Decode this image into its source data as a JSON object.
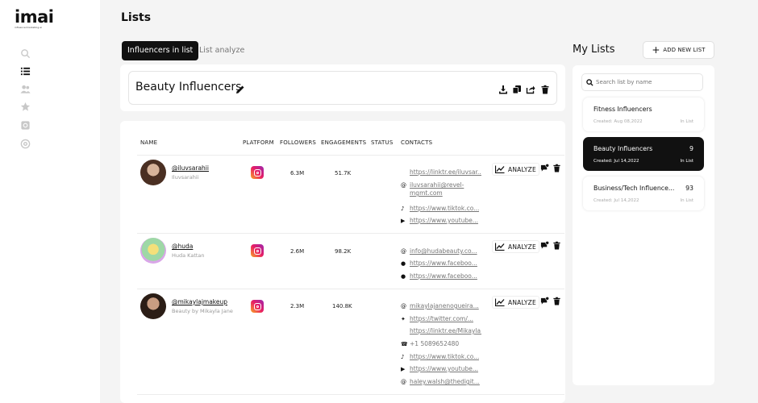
{
  "brand": {
    "name": "imai",
    "tagline": "influencermarketing.ai"
  },
  "page": {
    "title": "Lists"
  },
  "tabs": [
    {
      "label": "Influencers in list",
      "active": true
    },
    {
      "label": "List analyze",
      "active": false
    }
  ],
  "sidebar": {
    "icons": [
      "search-icon",
      "list-icon",
      "users-icon",
      "star-icon",
      "instagram-icon",
      "support-icon"
    ]
  },
  "current_list": {
    "name": "Beauty Influencers"
  },
  "table": {
    "headers": [
      "NAME",
      "PLATFORM",
      "FOLLOWERS",
      "ENGAGEMENTS",
      "STATUS",
      "CONTACTS"
    ],
    "analyze_label": "ANALYZE",
    "rows": [
      {
        "handle": "@iluvsarahii",
        "name": "Iluvsarahii",
        "platform": "instagram",
        "followers": "6.3M",
        "engagements": "51.7K",
        "status": "",
        "contacts": [
          {
            "icon": "",
            "text": "https://linktr.ee/iluvsar..."
          },
          {
            "icon": "at",
            "text": "iluvsarahii@revel-mgmt.com"
          },
          {
            "icon": "tiktok",
            "text": "https://www.tiktok.co..."
          },
          {
            "icon": "youtube",
            "text": "https://www.youtube..."
          }
        ]
      },
      {
        "handle": "@huda",
        "name": "Huda Kattan",
        "platform": "instagram",
        "followers": "2.6M",
        "engagements": "98.2K",
        "status": "",
        "contacts": [
          {
            "icon": "at",
            "text": "info@hudabeauty.co..."
          },
          {
            "icon": "facebook",
            "text": "https://www.faceboo..."
          },
          {
            "icon": "facebook",
            "text": "https://www.faceboo..."
          }
        ]
      },
      {
        "handle": "@mikaylajmakeup",
        "name": "Beauty by Mikayla Jane",
        "platform": "instagram",
        "followers": "2.3M",
        "engagements": "140.8K",
        "status": "",
        "contacts": [
          {
            "icon": "at",
            "text": "mikaylajanenogueira..."
          },
          {
            "icon": "twitter",
            "text": "https://twitter.com/..."
          },
          {
            "icon": "",
            "text": "https://linktr.ee/Mikayla..."
          },
          {
            "icon": "phone",
            "text": "+1 5089652480"
          },
          {
            "icon": "tiktok",
            "text": "https://www.tiktok.co..."
          },
          {
            "icon": "youtube",
            "text": "https://www.youtube..."
          },
          {
            "icon": "at",
            "text": "haley.walsh@thedigit..."
          }
        ]
      }
    ]
  },
  "my_lists": {
    "title": "My Lists",
    "add_button": "ADD NEW LIST",
    "search_placeholder": "Search list by name",
    "in_list_label": "In List",
    "items": [
      {
        "name": "Fitness Influencers",
        "count": "",
        "created": "Created: Aug 08,2022",
        "active": false
      },
      {
        "name": "Beauty Influencers",
        "count": "9",
        "created": "Created: Jul 14,2022",
        "active": true
      },
      {
        "name": "Business/Tech Influence...",
        "count": "93",
        "created": "Created: Jul 14,2022",
        "active": false
      }
    ]
  },
  "colors": {
    "accent": "#111111",
    "background": "#f4f4f4",
    "instagram_start": "#f9a825",
    "instagram_end": "#9c27b0"
  }
}
